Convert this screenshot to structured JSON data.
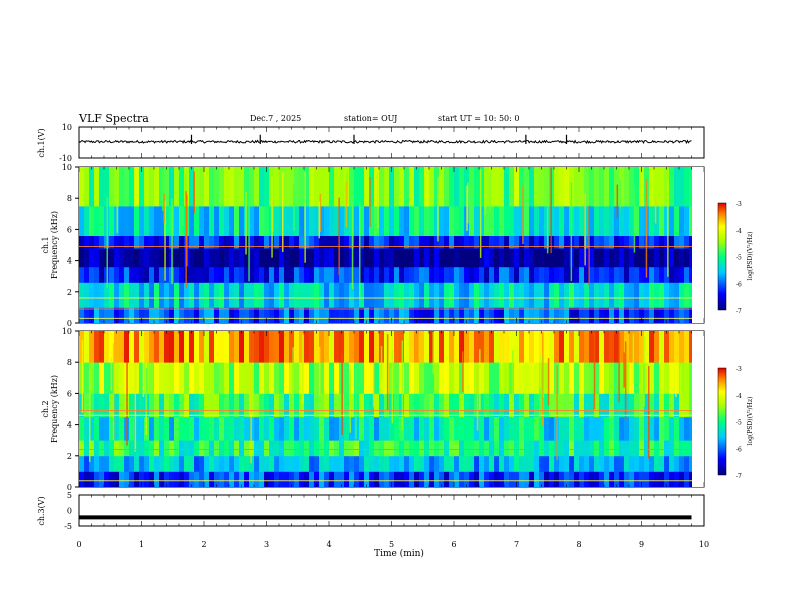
{
  "header": {
    "title": "VLF Spectra",
    "date": "Dec.7  , 2025",
    "station": "station= OUJ",
    "start": "start  UT  =   10: 50: 0"
  },
  "chart_data": [
    {
      "type": "line",
      "panel": "ch1-waveform",
      "ylabel": "ch.1(V)",
      "ylim": [
        -10,
        10
      ],
      "y_ticks": [
        "10",
        "-10"
      ],
      "xlim": [
        0,
        10
      ],
      "note_series": "noisy waveform centered slightly above 0 V with occasional spikes",
      "series": [
        {
          "x": [
            0,
            0.5,
            1,
            1.5,
            2,
            2.5,
            3,
            3.5,
            4,
            4.5,
            5,
            5.5,
            6,
            6.5,
            7,
            7.5,
            8,
            8.5,
            9,
            9.5,
            9.8
          ],
          "y": [
            0.5,
            0.6,
            0.4,
            0.5,
            0.5,
            0.6,
            0.4,
            0.5,
            0.5,
            0.4,
            0.5,
            0.6,
            0.5,
            0.4,
            0.5,
            0.5,
            0.6,
            0.5,
            0.4,
            0.5,
            0.5
          ]
        }
      ],
      "spikes_x": [
        1.8,
        2.9,
        4.4,
        7.15,
        7.8
      ]
    },
    {
      "type": "heatmap",
      "panel": "ch1-spectrogram",
      "ylabel": "ch.1\nFrequency  (kHz)",
      "ylim": [
        0,
        10
      ],
      "y_ticks": [
        "0",
        "2",
        "4",
        "6",
        "8",
        "10"
      ],
      "xlim": [
        0,
        10
      ],
      "colorbar": {
        "label": "log(PSD)(V²/Hz)",
        "range": [
          -7,
          -3
        ],
        "ticks": [
          "-3",
          "-4",
          "-5",
          "-6",
          "-7"
        ]
      },
      "bands": [
        {
          "from": 0,
          "to": 1.0,
          "level": -6.1
        },
        {
          "from": 1.0,
          "to": 2.6,
          "level": -5.4
        },
        {
          "from": 2.6,
          "to": 3.6,
          "level": -6.3
        },
        {
          "from": 3.6,
          "to": 4.8,
          "level": -6.9
        },
        {
          "from": 4.8,
          "to": 5.6,
          "level": -6.3
        },
        {
          "from": 5.6,
          "to": 7.5,
          "level": -5.3
        },
        {
          "from": 7.5,
          "to": 10,
          "level": -4.7
        }
      ],
      "lines_khz": [
        4.9,
        1.6,
        0.9,
        0.3
      ]
    },
    {
      "type": "heatmap",
      "panel": "ch2-spectrogram",
      "ylabel": "ch.2\nFrequency  (kHz)",
      "ylim": [
        0,
        10
      ],
      "y_ticks": [
        "0",
        "2",
        "4",
        "6",
        "8",
        "10"
      ],
      "xlim": [
        0,
        10
      ],
      "colorbar": {
        "label": "log(PSD)(V²/Hz)",
        "range": [
          -7,
          -3
        ],
        "ticks": [
          "-3",
          "-4",
          "-5",
          "-6",
          "-7"
        ]
      },
      "bands": [
        {
          "from": 0,
          "to": 1.0,
          "level": -6.2
        },
        {
          "from": 1.0,
          "to": 2.0,
          "level": -5.6
        },
        {
          "from": 2.0,
          "to": 3.0,
          "level": -5.0
        },
        {
          "from": 3.0,
          "to": 4.5,
          "level": -5.3
        },
        {
          "from": 4.5,
          "to": 6.0,
          "level": -4.9
        },
        {
          "from": 6.0,
          "to": 8.0,
          "level": -4.4
        },
        {
          "from": 8.0,
          "to": 10,
          "level": -3.6
        }
      ],
      "lines_khz": [
        4.9,
        4.6,
        2.4,
        0.4
      ]
    },
    {
      "type": "line",
      "panel": "ch3-waveform",
      "ylabel": "ch.3(V)",
      "ylim": [
        -5,
        5
      ],
      "y_ticks": [
        "5",
        "0",
        "-5"
      ],
      "xlim": [
        0,
        10
      ],
      "xlabel": "Time  (min)",
      "x_ticks": [
        "0",
        "1",
        "2",
        "3",
        "4",
        "5",
        "6",
        "7",
        "8",
        "9",
        "10"
      ],
      "series": [
        {
          "x": [
            0,
            9.8
          ],
          "y": [
            -2.2,
            -2.2
          ]
        }
      ]
    }
  ]
}
